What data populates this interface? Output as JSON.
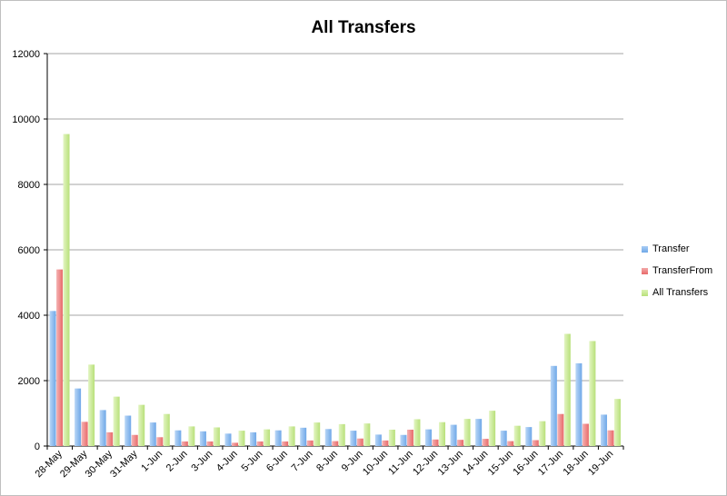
{
  "chart_data": {
    "type": "bar",
    "title": "All Transfers",
    "xlabel": "",
    "ylabel": "",
    "ylim": [
      0,
      12000
    ],
    "yticks": [
      0,
      2000,
      4000,
      6000,
      8000,
      10000,
      12000
    ],
    "grid": true,
    "legend_position": "right",
    "categories": [
      "28-May",
      "29-May",
      "30-May",
      "31-May",
      "1-Jun",
      "2-Jun",
      "3-Jun",
      "4-Jun",
      "5-Jun",
      "6-Jun",
      "7-Jun",
      "8-Jun",
      "9-Jun",
      "10-Jun",
      "11-Jun",
      "12-Jun",
      "13-Jun",
      "14-Jun",
      "15-Jun",
      "16-Jun",
      "17-Jun",
      "18-Jun",
      "19-Jun"
    ],
    "series": [
      {
        "name": "Transfer",
        "color": "#6fa8e8",
        "values": [
          4130,
          1760,
          1100,
          930,
          720,
          480,
          450,
          380,
          420,
          480,
          560,
          520,
          470,
          350,
          340,
          510,
          650,
          830,
          470,
          580,
          2450,
          2530,
          960
        ]
      },
      {
        "name": "TransferFrom",
        "color": "#e86a6a",
        "values": [
          5400,
          740,
          420,
          340,
          270,
          140,
          140,
          100,
          140,
          140,
          170,
          150,
          230,
          170,
          500,
          200,
          190,
          220,
          150,
          180,
          980,
          680,
          480
        ]
      },
      {
        "name": "All Transfers",
        "color": "#b8e07a",
        "values": [
          9540,
          2490,
          1510,
          1260,
          980,
          600,
          570,
          470,
          510,
          600,
          720,
          670,
          690,
          500,
          820,
          730,
          830,
          1080,
          620,
          760,
          3430,
          3210,
          1440
        ]
      }
    ]
  }
}
